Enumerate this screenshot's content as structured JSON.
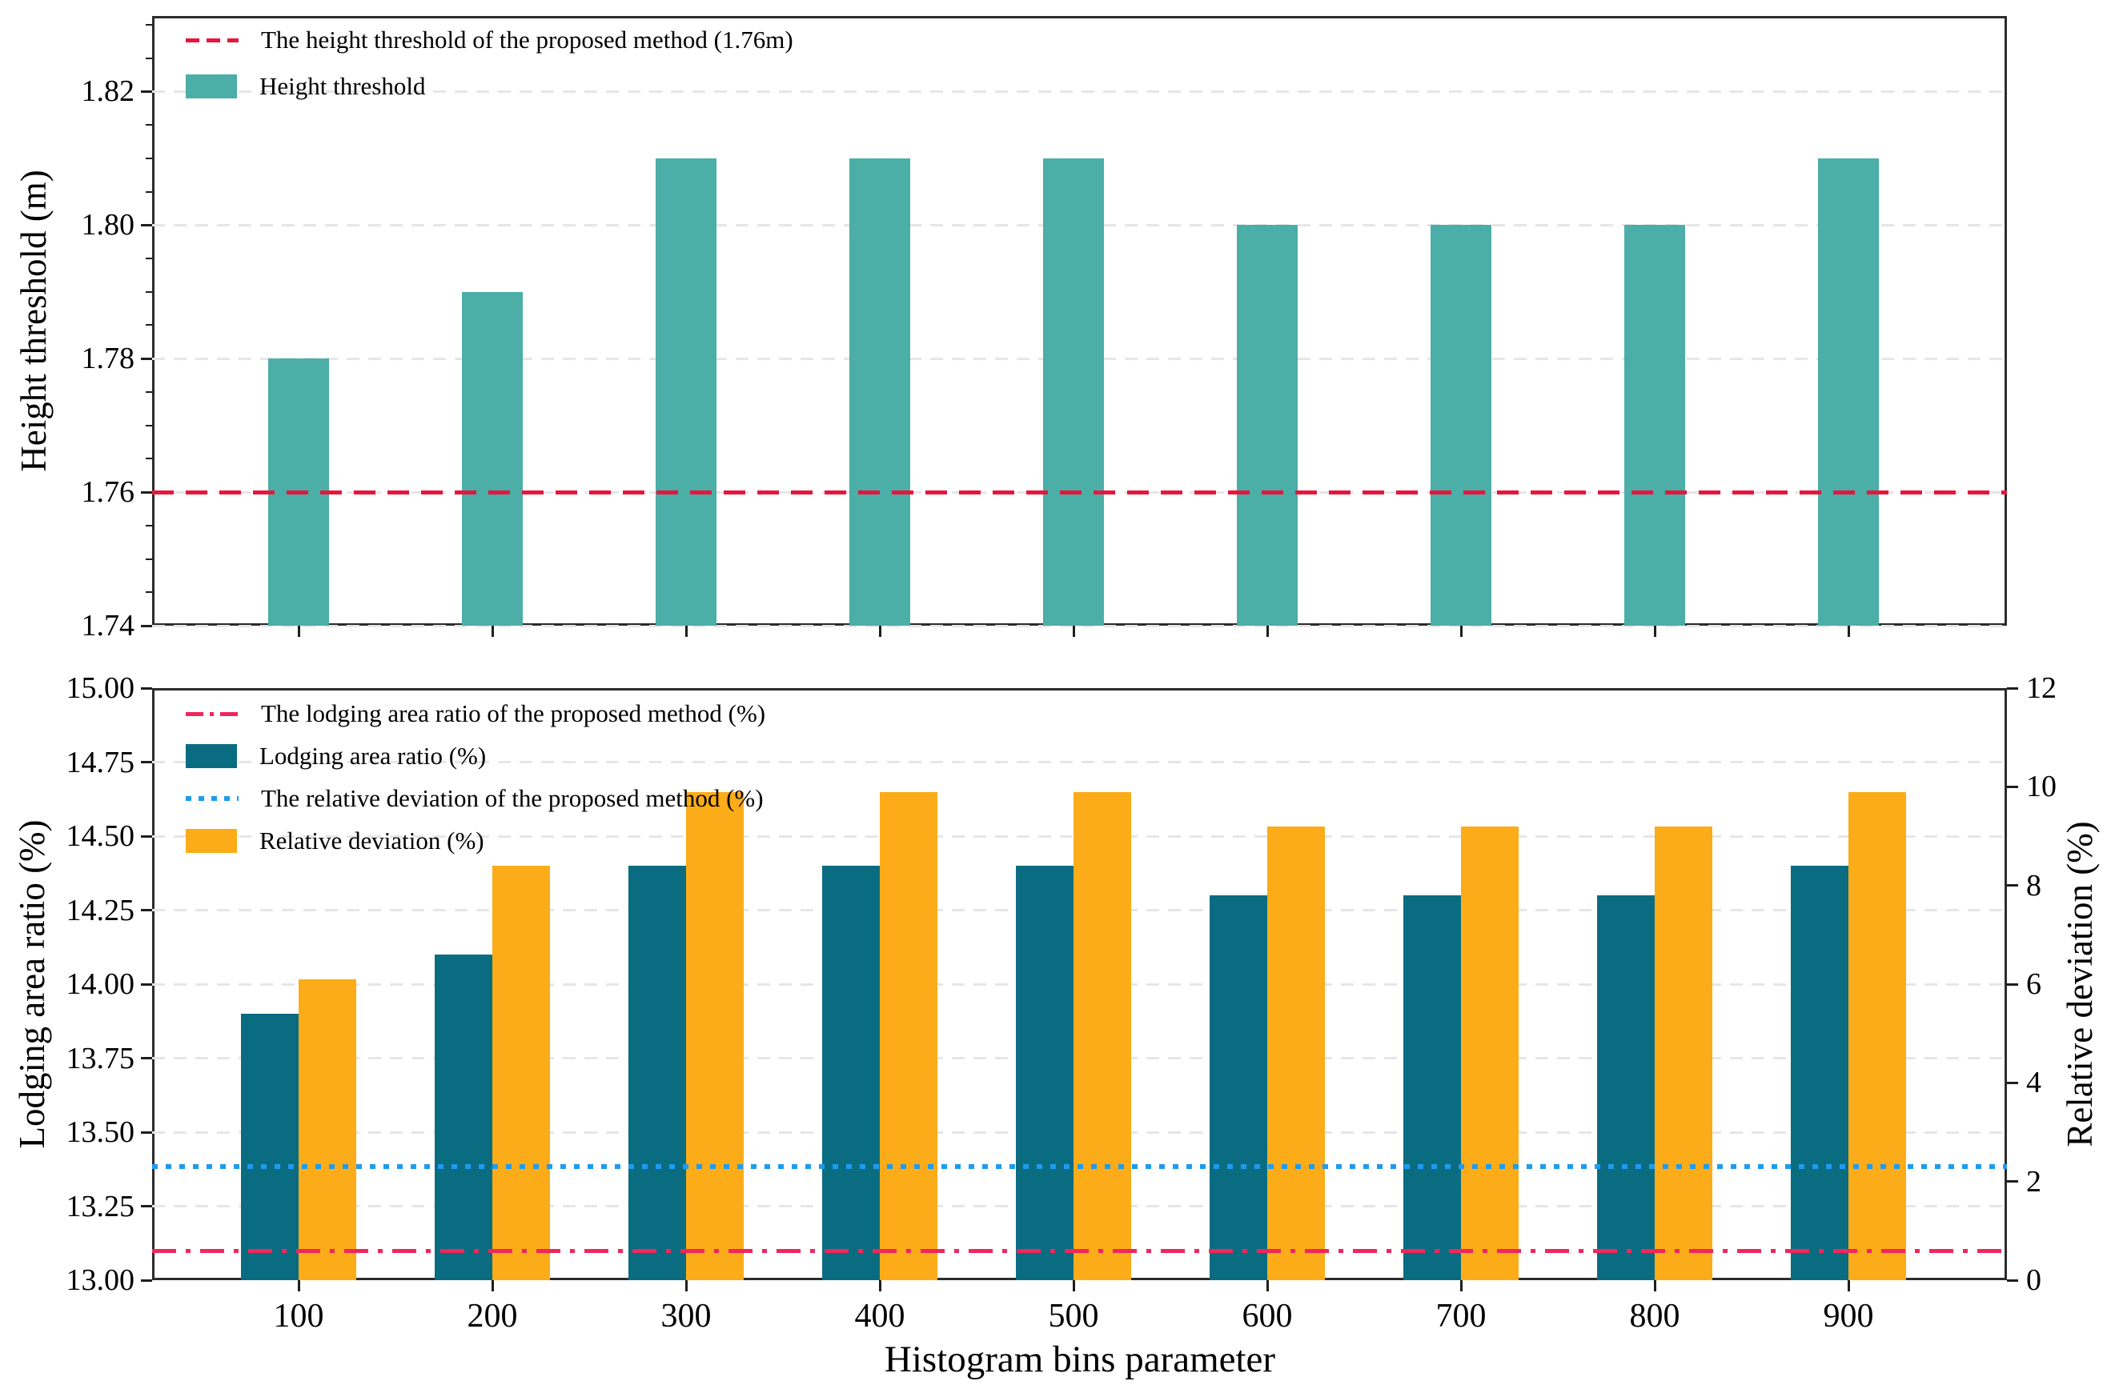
{
  "figure": {
    "xlabel": "Histogram bins parameter"
  },
  "chart_data": [
    {
      "type": "bar",
      "panel": "top",
      "ylabel": "Height threshold (m)",
      "ylim": [
        1.74,
        1.8313
      ],
      "categories": [
        100,
        200,
        300,
        400,
        500,
        600,
        700,
        800,
        900
      ],
      "series": [
        {
          "name": "Height threshold",
          "color": "#4BAEA7",
          "values": [
            1.78,
            1.79,
            1.81,
            1.81,
            1.81,
            1.8,
            1.8,
            1.8,
            1.81
          ]
        }
      ],
      "reference_lines": [
        {
          "label": "The height threshold of the proposed method (1.76m)",
          "value": 1.76,
          "style": "dashed",
          "color": "#E8153C"
        }
      ],
      "yticks": [
        "1.82",
        "1.80",
        "1.78",
        "1.76",
        "1.74"
      ],
      "grid": true,
      "legend_position": "upper-left"
    },
    {
      "type": "bar",
      "panel": "bottom",
      "ylabel_left": "Lodging area ratio (%)",
      "ylabel_right": "Relative deviation (%)",
      "xlabel": "Histogram bins parameter",
      "ylim_left": [
        13.0,
        15.0
      ],
      "ylim_right": [
        0,
        12
      ],
      "categories": [
        100,
        200,
        300,
        400,
        500,
        600,
        700,
        800,
        900
      ],
      "series": [
        {
          "name": "Lodging area ratio (%)",
          "axis": "left",
          "color": "#0A6C80",
          "values": [
            13.9,
            14.1,
            14.4,
            14.4,
            14.4,
            14.3,
            14.3,
            14.3,
            14.4
          ]
        },
        {
          "name": "Relative deviation (%)",
          "axis": "right",
          "color": "#FBAC18",
          "values": [
            6.1,
            8.4,
            9.9,
            9.9,
            9.9,
            9.2,
            9.2,
            9.2,
            9.9
          ]
        }
      ],
      "reference_lines": [
        {
          "label": "The lodging area ratio of the proposed method (%)",
          "value": 13.1,
          "axis": "left",
          "style": "dashdot",
          "color": "#F1265D"
        },
        {
          "label": "The relative deviation of the proposed method (%)",
          "value": 2.3,
          "axis": "right",
          "style": "dotted",
          "color": "#1E9BF0"
        }
      ],
      "yticks_left": [
        "15.00",
        "14.75",
        "14.50",
        "14.25",
        "14.00",
        "13.75",
        "13.50",
        "13.25",
        "13.00"
      ],
      "yticks_right": [
        "12",
        "10",
        "8",
        "6",
        "4",
        "2",
        "0"
      ],
      "xticks": [
        "100",
        "200",
        "300",
        "400",
        "500",
        "600",
        "700",
        "800",
        "900"
      ],
      "grid": true,
      "legend_position": "upper-left"
    }
  ]
}
